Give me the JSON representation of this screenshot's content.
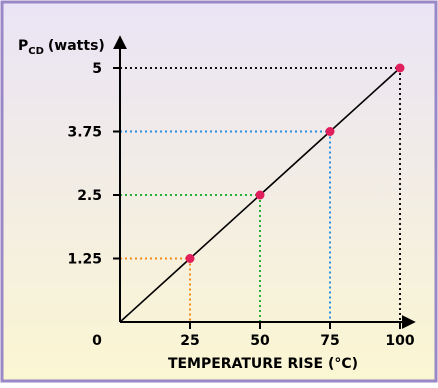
{
  "colors": {
    "border": "#9a87c6",
    "background_top": "#eae4f6",
    "background_bottom": "#fbf6d2",
    "point": "#e01f5c",
    "guide_1": "#f28a14",
    "guide_2": "#29b23a",
    "guide_3": "#2a8ee0",
    "guide_4": "#111111"
  },
  "chart_data": {
    "type": "line",
    "ylabel_main": "P",
    "ylabel_sub": "CD",
    "ylabel_unit": "(watts)",
    "xlabel": "TEMPERATURE RISE (°C)",
    "origin_label": "0",
    "xlim": [
      0,
      110
    ],
    "ylim": [
      0,
      5.8
    ],
    "xticks": [
      {
        "value": 25,
        "label": "25"
      },
      {
        "value": 50,
        "label": "50"
      },
      {
        "value": 75,
        "label": "75"
      },
      {
        "value": 100,
        "label": "100"
      }
    ],
    "yticks": [
      {
        "value": 1.25,
        "label": "1.25"
      },
      {
        "value": 2.5,
        "label": "2.5"
      },
      {
        "value": 3.75,
        "label": "3.75"
      },
      {
        "value": 5,
        "label": "5"
      }
    ],
    "series": [
      {
        "x": [
          0,
          25,
          50,
          75,
          100
        ],
        "y": [
          0,
          1.25,
          2.5,
          3.75,
          5
        ]
      }
    ],
    "points": [
      {
        "x": 25,
        "y": 1.25
      },
      {
        "x": 50,
        "y": 2.5
      },
      {
        "x": 75,
        "y": 3.75
      },
      {
        "x": 100,
        "y": 5
      }
    ],
    "grid": false,
    "legend": false
  }
}
